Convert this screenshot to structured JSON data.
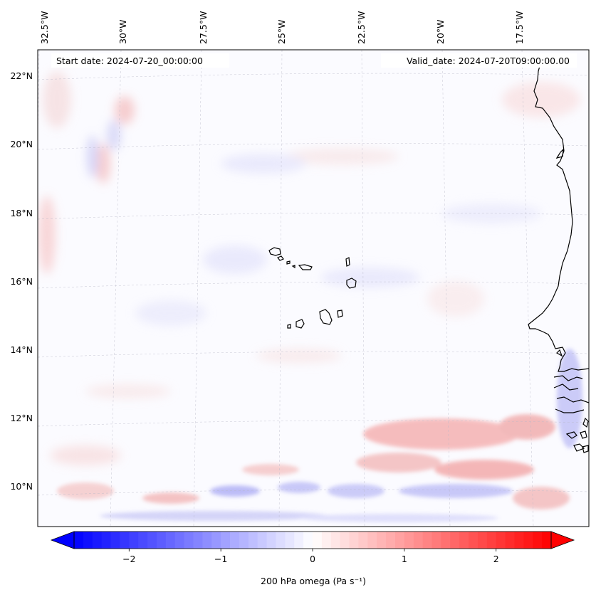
{
  "map": {
    "start_date": "Start date: 2024-07-20_00:00:00",
    "valid_date": "Valid_date: 2024-07-20T09:00:00.00",
    "lon_labels": [
      "32.5°W",
      "30°W",
      "27.5°W",
      "25°W",
      "22.5°W",
      "20°W",
      "17.5°W"
    ],
    "lat_labels": [
      "22°N",
      "20°N",
      "18°N",
      "16°N",
      "14°N",
      "12°N",
      "10°N"
    ],
    "colors": {
      "negative": "#0000ff",
      "zero": "#ffffff",
      "positive": "#ff0000",
      "coastline": "#000000",
      "gridline": "#b0b0b0"
    }
  },
  "colorbar": {
    "label": "200 hPa omega (Pa s⁻¹)",
    "range": [
      -2.6,
      2.6
    ],
    "ticks": [
      {
        "value": -2,
        "label": "−2"
      },
      {
        "value": -1,
        "label": "−1"
      },
      {
        "value": 0,
        "label": "0"
      },
      {
        "value": 1,
        "label": "1"
      },
      {
        "value": 2,
        "label": "2"
      }
    ]
  }
}
